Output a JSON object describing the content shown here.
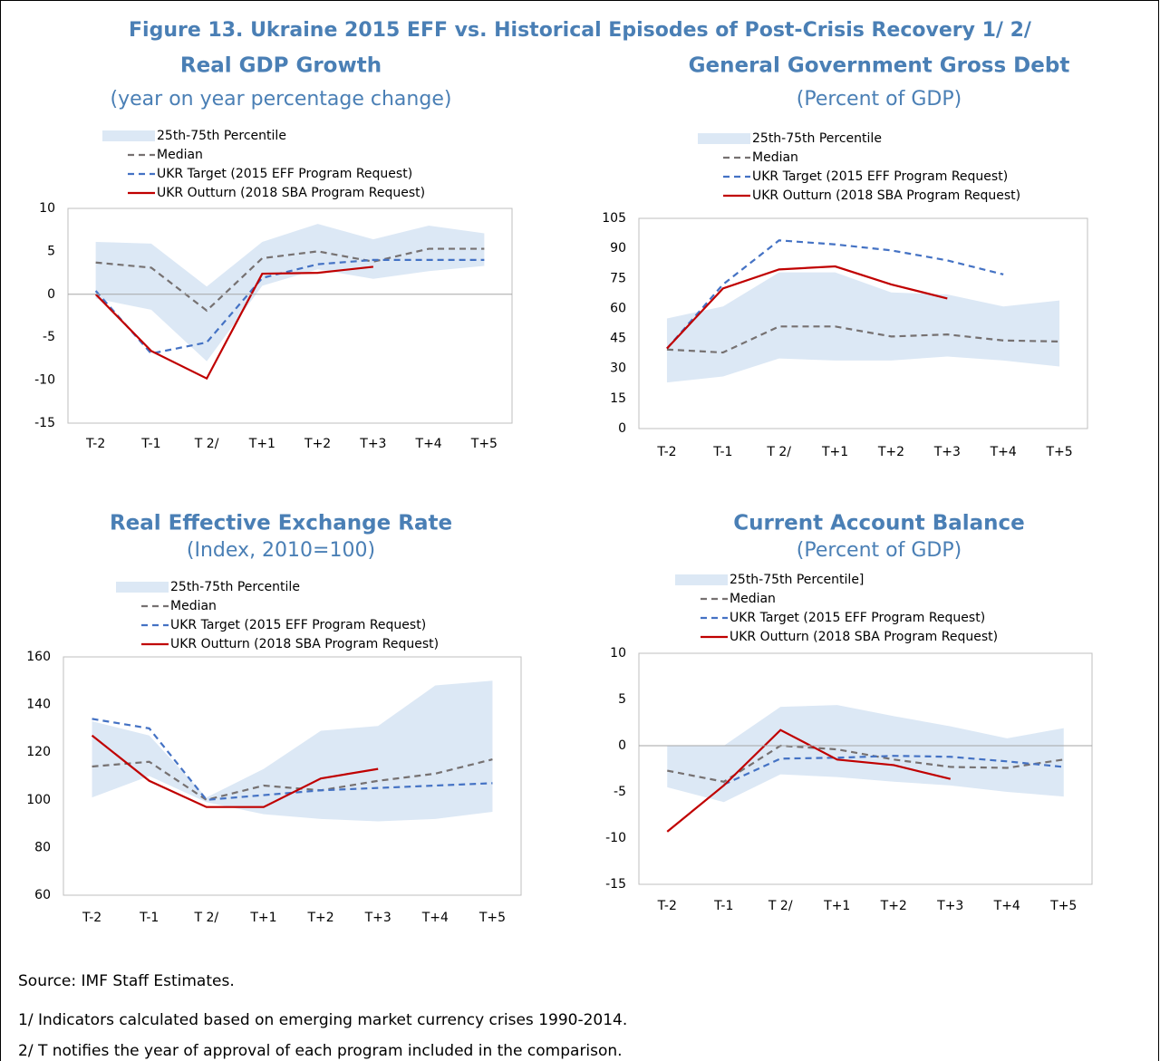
{
  "title": "Figure 13. Ukraine 2015 EFF vs. Historical Episodes of Post-Crisis Recovery 1/ 2/",
  "notes": [
    "Source: IMF Staff Estimates.",
    "1/ Indicators calculated based on emerging market currency crises 1990-2014.",
    "2/ T notifies the year of approval of each program included in the comparison."
  ],
  "chart_data": [
    {
      "type": "line",
      "title": "Real GDP Growth",
      "subtitle": "(year on year percentage change)",
      "categories": [
        "T-2",
        "T-1",
        "T 2/",
        "T+1",
        "T+2",
        "T+3",
        "T+4",
        "T+5"
      ],
      "ylim": [
        -15,
        10
      ],
      "yticks": [
        -15,
        -10,
        -5,
        0,
        5,
        10
      ],
      "series": [
        {
          "name": "25th-75th Percentile",
          "kind": "band",
          "color": "#dce8f5",
          "upper": [
            6.1,
            5.9,
            0.9,
            6.1,
            8.2,
            6.4,
            8.0,
            7.1
          ],
          "lower": [
            -0.5,
            -1.8,
            -7.8,
            1.0,
            2.9,
            1.8,
            2.7,
            3.3
          ]
        },
        {
          "name": "Median",
          "color": "#767171",
          "dash": true,
          "values": [
            3.7,
            3.1,
            -1.9,
            4.2,
            5.0,
            3.8,
            5.3,
            5.3
          ]
        },
        {
          "name": "UKR Target (2015 EFF Program Request)",
          "color": "#4472c4",
          "dash": true,
          "values": [
            0.4,
            -6.9,
            -5.6,
            1.9,
            3.5,
            4.0,
            4.0,
            4.0
          ]
        },
        {
          "name": "UKR Outturn (2018 SBA Program Request)",
          "color": "#c00000",
          "dash": false,
          "values": [
            0.0,
            -6.6,
            -9.8,
            2.4,
            2.5,
            3.2,
            null,
            null
          ]
        }
      ]
    },
    {
      "type": "line",
      "title": "General Government Gross Debt",
      "subtitle": "(Percent of GDP)",
      "categories": [
        "T-2",
        "T-1",
        "T 2/",
        "T+1",
        "T+2",
        "T+3",
        "T+4",
        "T+5"
      ],
      "ylim": [
        0,
        105
      ],
      "yticks": [
        0,
        15,
        30,
        45,
        60,
        75,
        90,
        105
      ],
      "series": [
        {
          "name": "25th-75th Percentile",
          "kind": "band",
          "color": "#dce8f5",
          "upper": [
            55,
            61,
            78,
            78,
            68,
            67,
            61,
            64
          ],
          "lower": [
            23,
            26,
            35,
            34,
            34,
            36,
            34,
            31
          ]
        },
        {
          "name": "Median",
          "color": "#767171",
          "dash": true,
          "values": [
            39.5,
            38,
            51,
            51,
            46,
            47,
            44,
            43.5
          ]
        },
        {
          "name": "UKR Target (2015 EFF Program Request)",
          "color": "#4472c4",
          "dash": true,
          "values": [
            40,
            72,
            94,
            92,
            89,
            84,
            77,
            null
          ]
        },
        {
          "name": "UKR Outturn (2018 SBA Program Request)",
          "color": "#c00000",
          "dash": false,
          "values": [
            40,
            70,
            79.5,
            81,
            72,
            65,
            null,
            null
          ]
        }
      ]
    },
    {
      "type": "line",
      "title": "Real Effective Exchange Rate",
      "subtitle": "(Index, 2010=100)",
      "categories": [
        "T-2",
        "T-1",
        "T 2/",
        "T+1",
        "T+2",
        "T+3",
        "T+4",
        "T+5"
      ],
      "ylim": [
        60,
        160
      ],
      "yticks": [
        60,
        80,
        100,
        120,
        140,
        160
      ],
      "series": [
        {
          "name": "25th-75th Percentile",
          "kind": "band",
          "color": "#dce8f5",
          "upper": [
            133,
            127,
            101,
            113,
            129,
            131,
            148,
            150
          ],
          "lower": [
            101,
            110,
            99,
            94,
            92,
            91,
            92,
            95
          ]
        },
        {
          "name": "Median",
          "color": "#767171",
          "dash": true,
          "values": [
            114,
            116,
            100,
            106,
            104,
            108,
            111,
            117
          ]
        },
        {
          "name": "UKR Target (2015 EFF Program Request)",
          "color": "#4472c4",
          "dash": true,
          "values": [
            134,
            130,
            100,
            102,
            104,
            105,
            106,
            107
          ]
        },
        {
          "name": "UKR Outturn (2018 SBA Program Request)",
          "color": "#c00000",
          "dash": false,
          "values": [
            127,
            108,
            97,
            97,
            109,
            113,
            null,
            null
          ]
        }
      ]
    },
    {
      "type": "line",
      "title": "Current Account Balance",
      "subtitle": "(Percent of GDP)",
      "categories": [
        "T-2",
        "T-1",
        "T 2/",
        "T+1",
        "T+2",
        "T+3",
        "T+4",
        "T+5"
      ],
      "ylim": [
        -15,
        10
      ],
      "yticks": [
        -15,
        -10,
        -5,
        0,
        5,
        10
      ],
      "series": [
        {
          "name": "25th-75th Percentile]",
          "kind": "band",
          "color": "#dce8f5",
          "upper": [
            0,
            0,
            4.2,
            4.4,
            3.2,
            2.1,
            0.8,
            1.9
          ],
          "lower": [
            -4.5,
            -6.1,
            -3.1,
            -3.4,
            -3.9,
            -4.3,
            -5.0,
            -5.5
          ]
        },
        {
          "name": "Median",
          "color": "#767171",
          "dash": true,
          "values": [
            -2.7,
            -3.9,
            0.0,
            -0.4,
            -1.5,
            -2.3,
            -2.4,
            -1.5
          ]
        },
        {
          "name": "UKR Target (2015 EFF Program Request)",
          "color": "#4472c4",
          "dash": true,
          "values": [
            null,
            -4.2,
            -1.4,
            -1.3,
            -1.1,
            -1.2,
            -1.7,
            -2.3
          ]
        },
        {
          "name": "UKR Outturn (2018 SBA Program Request)",
          "color": "#c00000",
          "dash": false,
          "values": [
            -9.3,
            -4.3,
            1.7,
            -1.5,
            -2.1,
            -3.6,
            null,
            null
          ]
        }
      ]
    }
  ]
}
